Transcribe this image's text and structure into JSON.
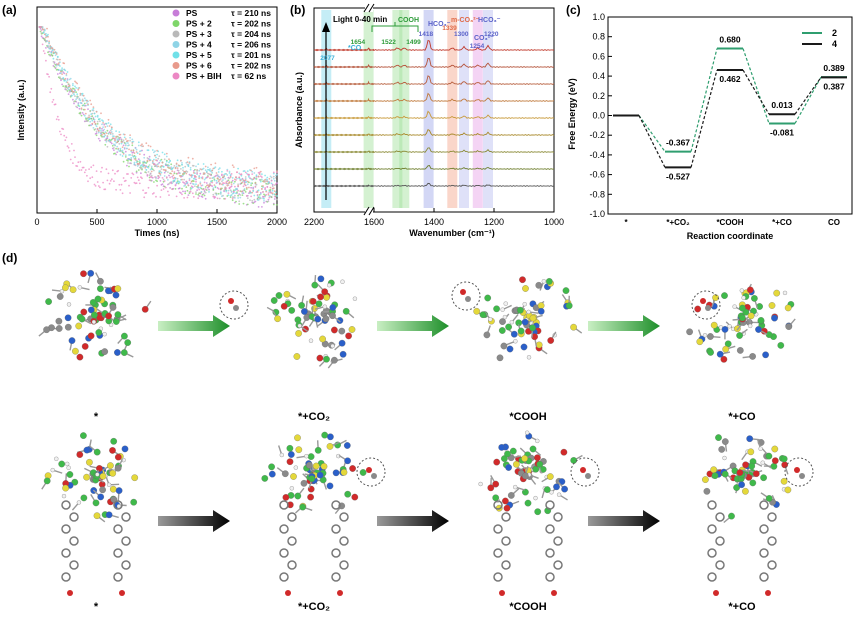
{
  "panels": {
    "a": "(a)",
    "b": "(b)",
    "c": "(c)",
    "d": "(d)"
  },
  "chart_data": [
    {
      "type": "scatter",
      "panel": "(a)",
      "xlabel": "Times (ns)",
      "ylabel": "Intensity (a.u.)",
      "xlim": [
        0,
        2000
      ],
      "xticks": [
        "0",
        "500",
        "1000",
        "1500",
        "2000"
      ],
      "legend_position": "top-right",
      "series": [
        {
          "name": "PS",
          "tau_label": "τ = 210 ns",
          "tau": 210,
          "color": "#c77dd8"
        },
        {
          "name": "PS + 2",
          "tau_label": "τ = 202 ns",
          "tau": 202,
          "color": "#7fd66a"
        },
        {
          "name": "PS + 3",
          "tau_label": "τ = 204 ns",
          "tau": 204,
          "color": "#b9b9b9"
        },
        {
          "name": "PS + 4",
          "tau_label": "τ = 206 ns",
          "tau": 206,
          "color": "#8fd4e6"
        },
        {
          "name": "PS + 5",
          "tau_label": "τ = 201 ns",
          "tau": 201,
          "color": "#70e0e8"
        },
        {
          "name": "PS + 6",
          "tau_label": "τ = 202 ns",
          "tau": 202,
          "color": "#e89a8c"
        },
        {
          "name": "PS + BIH",
          "tau_label": "τ = 62 ns",
          "tau": 62,
          "color": "#ec88c4"
        }
      ]
    },
    {
      "type": "line",
      "panel": "(b)",
      "xlabel": "Wavenumber (cm⁻¹)",
      "ylabel": "Absorbance (a.u.)",
      "xlim": [
        2200,
        1000
      ],
      "xticks": [
        "2200",
        "1600",
        "1400",
        "1200",
        "1000"
      ],
      "arrow_label": "Light 0-40 min",
      "trace_colors": [
        "#c0392b",
        "#b5533a",
        "#b8603f",
        "#c07a3c",
        "#c89a3a",
        "#a98a2c",
        "#8a8a35",
        "#6f7f2e",
        "#555555"
      ],
      "bands": [
        {
          "center": 2077,
          "label": "2077",
          "group": "*CO",
          "color": "#7fd6ea"
        },
        {
          "center": 1654,
          "label": "1654",
          "group": "COOH",
          "color": "#9fe09a"
        },
        {
          "center": 1522,
          "label": "1522",
          "group": "COOH",
          "color": "#9fe09a"
        },
        {
          "center": 1499,
          "label": "1499",
          "group": "COOH",
          "color": "#9fe09a"
        },
        {
          "center": 1418,
          "label": "1418",
          "group": "HCO₃⁻",
          "color": "#9ea6e8"
        },
        {
          "center": 1339,
          "label": "1339",
          "group": "m-CO₃²⁻",
          "color": "#f3a58a"
        },
        {
          "center": 1300,
          "label": "1300",
          "group": "CO₃²⁻",
          "color": "#b7bdf0"
        },
        {
          "center": 1254,
          "label": "1254",
          "group": "CO₃²⁻",
          "color": "#e7a0e6"
        },
        {
          "center": 1220,
          "label": "1220",
          "group": "HCO₃⁻",
          "color": "#b7bdf0"
        }
      ],
      "group_labels": {
        "co": "*CO",
        "cooh": "COOH",
        "hco3a": "HCO₃⁻",
        "mco3": "m-CO₃²⁻",
        "hco3b": "HCO₃⁻",
        "co3": "CO₃²⁻"
      }
    },
    {
      "type": "line",
      "panel": "(c)",
      "xlabel": "Reaction coordinate",
      "ylabel": "Free Energy (eV)",
      "ylim": [
        -1.0,
        1.0
      ],
      "yticks": [
        "1.0",
        "0.8",
        "0.6",
        "0.4",
        "0.2",
        "0.0",
        "-0.2",
        "-0.4",
        "-0.6",
        "-0.8",
        "-1.0"
      ],
      "categories": [
        "*",
        "*+CO₂",
        "*COOH",
        "*+CO",
        "CO"
      ],
      "legend_position": "top-right",
      "series": [
        {
          "name": "2",
          "values": [
            0,
            -0.367,
            0.68,
            -0.081,
            0.389
          ],
          "color": "#2f9e6f"
        },
        {
          "name": "4",
          "values": [
            0,
            -0.527,
            0.462,
            0.013,
            0.387
          ],
          "color": "#1a1a1a"
        }
      ],
      "value_labels": [
        "-0.367",
        "-0.527",
        "0.680",
        "0.462",
        "0.013",
        "-0.081",
        "0.389",
        "0.387"
      ]
    }
  ],
  "structures": {
    "top_row": [
      "*",
      "*+CO₂",
      "*COOH",
      "*+CO"
    ],
    "bottom_row": [
      "*",
      "*+CO₂",
      "*COOH",
      "*+CO"
    ]
  }
}
